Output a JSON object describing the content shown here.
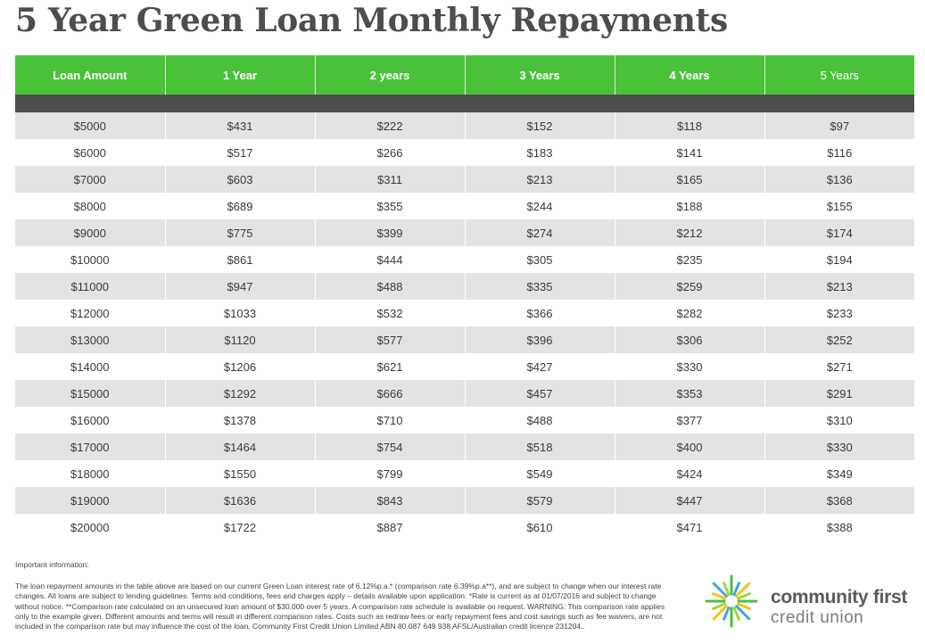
{
  "title": "5 Year Green Loan Monthly Repayments",
  "table": {
    "headers": [
      "Loan Amount",
      "1 Year",
      "2 years",
      "3 Years",
      "4 Years",
      "5 Years"
    ],
    "rows": [
      [
        "$5000",
        "$431",
        "$222",
        "$152",
        "$118",
        "$97"
      ],
      [
        "$6000",
        "$517",
        "$266",
        "$183",
        "$141",
        "$116"
      ],
      [
        "$7000",
        "$603",
        "$311",
        "$213",
        "$165",
        "$136"
      ],
      [
        "$8000",
        "$689",
        "$355",
        "$244",
        "$188",
        "$155"
      ],
      [
        "$9000",
        "$775",
        "$399",
        "$274",
        "$212",
        "$174"
      ],
      [
        "$10000",
        "$861",
        "$444",
        "$305",
        "$235",
        "$194"
      ],
      [
        "$11000",
        "$947",
        "$488",
        "$335",
        "$259",
        "$213"
      ],
      [
        "$12000",
        "$1033",
        "$532",
        "$366",
        "$282",
        "$233"
      ],
      [
        "$13000",
        "$1120",
        "$577",
        "$396",
        "$306",
        "$252"
      ],
      [
        "$14000",
        "$1206",
        "$621",
        "$427",
        "$330",
        "$271"
      ],
      [
        "$15000",
        "$1292",
        "$666",
        "$457",
        "$353",
        "$291"
      ],
      [
        "$16000",
        "$1378",
        "$710",
        "$488",
        "$377",
        "$310"
      ],
      [
        "$17000",
        "$1464",
        "$754",
        "$518",
        "$400",
        "$330"
      ],
      [
        "$18000",
        "$1550",
        "$799",
        "$549",
        "$424",
        "$349"
      ],
      [
        "$19000",
        "$1636",
        "$843",
        "$579",
        "$447",
        "$368"
      ],
      [
        "$20000",
        "$1722",
        "$887",
        "$610",
        "$471",
        "$388"
      ]
    ]
  },
  "info": {
    "label": "Important information:",
    "text": "The loan repayment amounts in the table above are based on our current Green Loan interest rate of 6.12%p.a.* (comparison rate 6.39%p.a**), and are subject to change when our interest rate changes. All loans are subject to lending guidelines. Terms and conditions, fees and charges apply – details available upon application. *Rate is current as at 01/07/2016 and subject to change without notice. **Comparison rate calculated on an unsecured loan amount of $30,000 over 5 years. A comparison rate schedule is available on request. WARNING: This comparison rate applies only to the example given. Different amounts and terms will result in different comparison rates. Costs such as redraw fees or early repayment fees and cost savings such as fee waivers, are not included in the comparison rate but may influence the cost of the loan. Community First Credit Union Limited ABN 80 087 649 938 AFSL/Australian credit licence 231204.."
  },
  "logo": {
    "line1": "community first",
    "line2": "credit union",
    "icon": "sunburst-icon",
    "colors": {
      "green": "#49c23a",
      "yellow": "#f2c21b",
      "blue": "#3fa7d6",
      "lime": "#a9cf38"
    }
  },
  "colors": {
    "header_green": "#49c23a",
    "band_dark": "#4d4d4d",
    "row_alt": "#e3e3e3"
  }
}
